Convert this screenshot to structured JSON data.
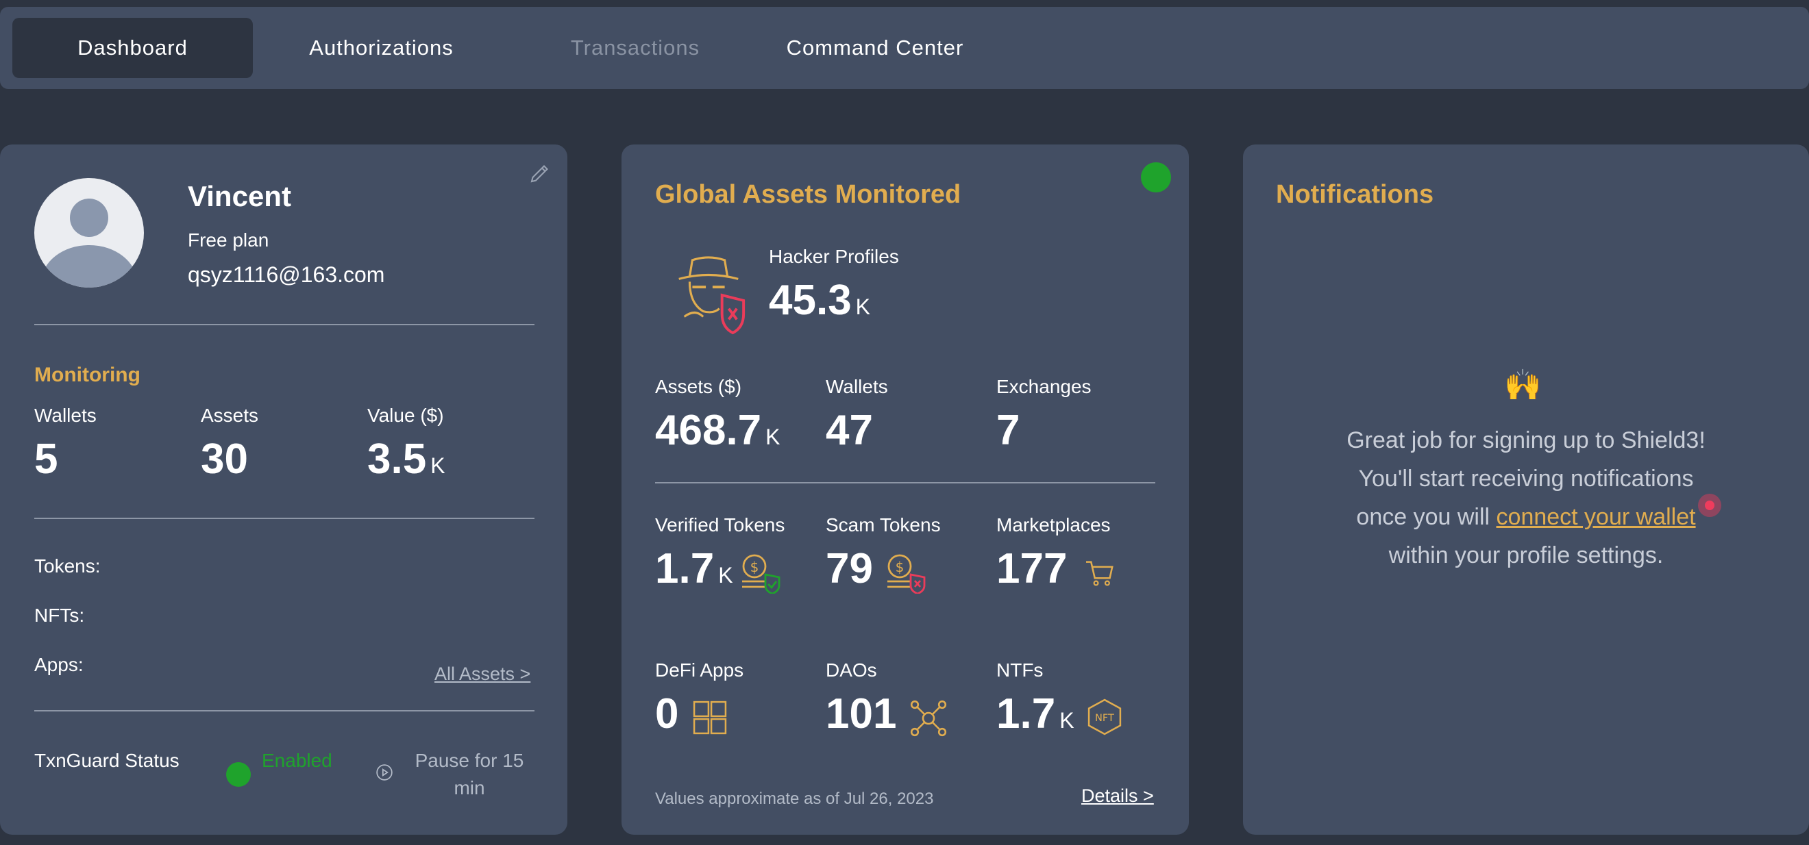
{
  "nav": {
    "tabs": [
      {
        "label": "Dashboard"
      },
      {
        "label": "Authorizations"
      },
      {
        "label": "Transactions"
      },
      {
        "label": "Command Center"
      }
    ]
  },
  "profile": {
    "name": "Vincent",
    "plan": "Free plan",
    "email": "qsyz1116@163.com",
    "monitoring_title": "Monitoring",
    "stats": [
      {
        "label": "Wallets",
        "value": "5",
        "unit": ""
      },
      {
        "label": "Assets",
        "value": "30",
        "unit": ""
      },
      {
        "label": "Value ($)",
        "value": "3.5",
        "unit": "K"
      }
    ],
    "tokens_label": "Tokens:",
    "nfts_label": "NFTs:",
    "apps_label": "Apps:",
    "all_assets_link": "All Assets >",
    "txnguard_label": "TxnGuard Status",
    "txnguard_status": "Enabled",
    "pause_line1": "Pause for 15",
    "pause_line2": "min",
    "status_color": "#1fa32c"
  },
  "global": {
    "title": "Global Assets Monitored",
    "hacker_label": "Hacker Profiles",
    "hacker_value": "45.3",
    "hacker_unit": "K",
    "row1": [
      {
        "label": "Assets ($)",
        "value": "468.7",
        "unit": "K"
      },
      {
        "label": "Wallets",
        "value": "47",
        "unit": ""
      },
      {
        "label": "Exchanges",
        "value": "7",
        "unit": ""
      }
    ],
    "row2": [
      {
        "label": "Verified Tokens",
        "value": "1.7",
        "unit": "K"
      },
      {
        "label": "Scam Tokens",
        "value": "79",
        "unit": ""
      },
      {
        "label": "Marketplaces",
        "value": "177",
        "unit": ""
      }
    ],
    "row3": [
      {
        "label": "DeFi Apps",
        "value": "0",
        "unit": ""
      },
      {
        "label": "DAOs",
        "value": "101",
        "unit": ""
      },
      {
        "label": "NTFs",
        "value": "1.7",
        "unit": "K"
      }
    ],
    "nft_badge": "NFT",
    "footnote": "Values approximate as of Jul 26, 2023",
    "details_link": "Details >",
    "accent_color": "#e1ad4f"
  },
  "notifications": {
    "title": "Notifications",
    "emoji": "🙌",
    "line1": "Great job for signing up to Shield3!",
    "line2": "You'll start receiving notifications",
    "line3_pre": "once you will ",
    "line3_link": "connect your wallet",
    "line4": "within your profile settings."
  }
}
